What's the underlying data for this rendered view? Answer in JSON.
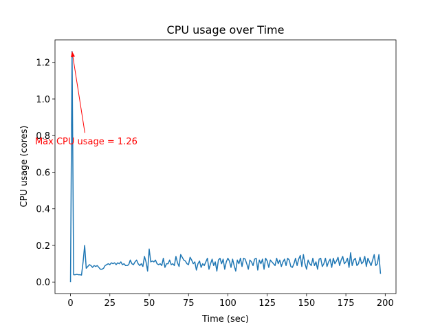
{
  "chart_data": {
    "type": "line",
    "title": "CPU usage over Time",
    "x_label": "Time (sec)",
    "y_label": "CPU usage (cores)",
    "x": [
      0,
      1,
      2,
      3,
      4,
      5,
      6,
      7,
      8,
      9,
      10,
      11,
      12,
      13,
      14,
      15,
      16,
      17,
      18,
      19,
      20,
      21,
      22,
      23,
      24,
      25,
      26,
      27,
      28,
      29,
      30,
      31,
      32,
      33,
      34,
      35,
      36,
      37,
      38,
      39,
      40,
      41,
      42,
      43,
      44,
      45,
      46,
      47,
      48,
      49,
      50,
      51,
      52,
      53,
      54,
      55,
      56,
      57,
      58,
      59,
      60,
      61,
      62,
      63,
      64,
      65,
      66,
      67,
      68,
      69,
      70,
      71,
      72,
      73,
      74,
      75,
      76,
      77,
      78,
      79,
      80,
      81,
      82,
      83,
      84,
      85,
      86,
      87,
      88,
      89,
      90,
      91,
      92,
      93,
      94,
      95,
      96,
      97,
      98,
      99,
      100,
      101,
      102,
      103,
      104,
      105,
      106,
      107,
      108,
      109,
      110,
      111,
      112,
      113,
      114,
      115,
      116,
      117,
      118,
      119,
      120,
      121,
      122,
      123,
      124,
      125,
      126,
      127,
      128,
      129,
      130,
      131,
      132,
      133,
      134,
      135,
      136,
      137,
      138,
      139,
      140,
      141,
      142,
      143,
      144,
      145,
      146,
      147,
      148,
      149,
      150,
      151,
      152,
      153,
      154,
      155,
      156,
      157,
      158,
      159,
      160,
      161,
      162,
      163,
      164,
      165,
      166,
      167,
      168,
      169,
      170,
      171,
      172,
      173,
      174,
      175,
      176,
      177,
      178,
      179,
      180,
      181,
      182,
      183,
      184,
      185,
      186,
      187,
      188,
      189,
      190,
      191,
      192,
      193,
      194,
      195,
      196,
      197
    ],
    "series": [
      {
        "color": "#1f77b4",
        "values": [
          0,
          1.26,
          0.04,
          0.04,
          0.042,
          0.04,
          0.04,
          0.038,
          0.11,
          0.2,
          0.075,
          0.085,
          0.095,
          0.09,
          0.08,
          0.09,
          0.085,
          0.09,
          0.08,
          0.07,
          0.07,
          0.075,
          0.09,
          0.095,
          0.1,
          0.095,
          0.105,
          0.1,
          0.105,
          0.095,
          0.105,
          0.1,
          0.11,
          0.095,
          0.1,
          0.09,
          0.09,
          0.095,
          0.12,
          0.1,
          0.095,
          0.11,
          0.12,
          0.1,
          0.09,
          0.1,
          0.085,
          0.14,
          0.11,
          0.06,
          0.18,
          0.11,
          0.115,
          0.11,
          0.12,
          0.1,
          0.095,
          0.1,
          0.09,
          0.13,
          0.08,
          0.1,
          0.1,
          0.12,
          0.095,
          0.1,
          0.09,
          0.14,
          0.105,
          0.085,
          0.15,
          0.135,
          0.12,
          0.115,
          0.1,
          0.095,
          0.135,
          0.12,
          0.1,
          0.11,
          0.065,
          0.1,
          0.115,
          0.08,
          0.1,
          0.09,
          0.11,
          0.13,
          0.07,
          0.1,
          0.125,
          0.09,
          0.11,
          0.06,
          0.12,
          0.13,
          0.1,
          0.125,
          0.07,
          0.11,
          0.13,
          0.115,
          0.08,
          0.125,
          0.09,
          0.06,
          0.12,
          0.1,
          0.13,
          0.085,
          0.13,
          0.125,
          0.1,
          0.07,
          0.12,
          0.11,
          0.09,
          0.125,
          0.13,
          0.065,
          0.12,
          0.1,
          0.125,
          0.07,
          0.13,
          0.115,
          0.08,
          0.12,
          0.11,
          0.1,
          0.09,
          0.13,
          0.1,
          0.12,
          0.085,
          0.11,
          0.125,
          0.09,
          0.13,
          0.12,
          0.085,
          0.08,
          0.1,
          0.13,
          0.09,
          0.125,
          0.145,
          0.085,
          0.15,
          0.1,
          0.07,
          0.12,
          0.1,
          0.09,
          0.13,
          0.09,
          0.11,
          0.07,
          0.125,
          0.13,
          0.085,
          0.1,
          0.13,
          0.085,
          0.11,
          0.125,
          0.08,
          0.13,
          0.1,
          0.115,
          0.135,
          0.09,
          0.12,
          0.14,
          0.1,
          0.11,
          0.13,
          0.08,
          0.16,
          0.09,
          0.12,
          0.13,
          0.09,
          0.1,
          0.135,
          0.1,
          0.11,
          0.14,
          0.085,
          0.13,
          0.11,
          0.09,
          0.12,
          0.15,
          0.09,
          0.1,
          0.15,
          0.045
        ]
      }
    ],
    "xlim": [
      -9.85,
      206.85
    ],
    "ylim": [
      -0.063,
      1.323
    ],
    "xticks": [
      0,
      25,
      50,
      75,
      100,
      125,
      150,
      175,
      200
    ],
    "yticks": [
      {
        "value": 0,
        "label": "0.0"
      },
      0.2,
      0.4,
      0.6,
      0.8,
      {
        "value": 1,
        "label": "1.0"
      },
      1.2
    ],
    "annotation": {
      "text": "Max CPU usage = 1.26",
      "color": "red",
      "xy": [
        1,
        1.26
      ],
      "xytext": [
        10,
        0.77
      ]
    }
  }
}
